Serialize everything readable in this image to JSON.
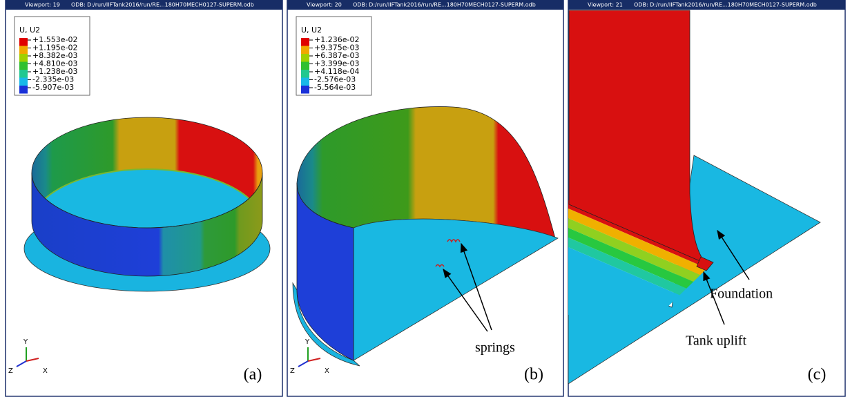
{
  "viewports": [
    {
      "viewport": "Viewport: 19",
      "odb": "ODB: D:/run/IIFTank2016/run/RE...180H70MECH0127-SUPERM.odb",
      "legend": {
        "title": "U, U2",
        "values": [
          "+1.553e-02",
          "+1.195e-02",
          "+8.382e-03",
          "+4.810e-03",
          "+1.238e-03",
          "-2.335e-03",
          "-5.907e-03"
        ]
      },
      "triad": {
        "y": "Y",
        "z": "Z",
        "x": "X"
      },
      "label": "(a)"
    },
    {
      "viewport": "Viewport: 20",
      "odb": "ODB: D:/run/IIFTank2016/run/RE...180H70MECH0127-SUPERM.odb",
      "legend": {
        "title": "U, U2",
        "values": [
          "+1.236e-02",
          "+9.375e-03",
          "+6.387e-03",
          "+3.399e-03",
          "+4.118e-04",
          "-2.576e-03",
          "-5.564e-03"
        ]
      },
      "triad": {
        "y": "Y",
        "z": "Z",
        "x": "X"
      },
      "label": "(b)",
      "annotations": [
        "springs"
      ]
    },
    {
      "viewport": "Viewport: 21",
      "odb": "ODB: D:/run/IIFTank2016/run/RE...180H70MECH0127-SUPERM.odb",
      "label": "(c)",
      "annotations": [
        "Foundation",
        "Tank uplift"
      ]
    }
  ]
}
